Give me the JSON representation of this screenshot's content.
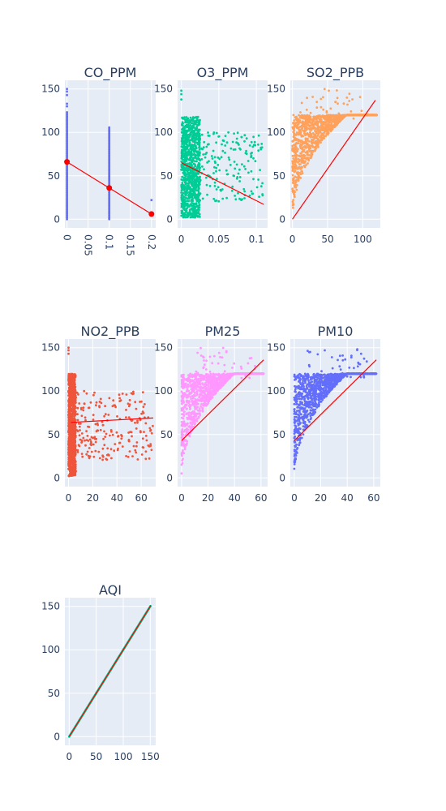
{
  "chart_data": [
    {
      "type": "scatter",
      "title": "CO_PPM",
      "xlim": [
        -0.005,
        0.21
      ],
      "ylim": [
        -10,
        160
      ],
      "x_ticks": [
        "0",
        "0.05",
        "0.1",
        "0.15",
        "0.2"
      ],
      "x_tick_values": [
        0,
        0.05,
        0.1,
        0.15,
        0.2
      ],
      "x_tick_angle": 90,
      "y_ticks": [
        "0",
        "50",
        "100",
        "150"
      ],
      "y_tick_values": [
        0,
        50,
        100,
        150
      ],
      "marker_color": "#636efa",
      "points": {
        "columns": [
          {
            "x": 0,
            "y_min": 0,
            "y_max": 124
          },
          {
            "x": 0.1,
            "y_min": 0,
            "y_max": 107
          }
        ],
        "extra": [
          [
            0,
            150
          ],
          [
            0,
            147
          ],
          [
            0,
            143
          ],
          [
            0,
            133
          ],
          [
            0,
            130
          ],
          [
            0.2,
            22
          ]
        ]
      },
      "trendline": {
        "color": "#ff0000",
        "x": [
          0,
          0.1,
          0.2
        ],
        "y": [
          66,
          36,
          6
        ],
        "markers": true
      }
    },
    {
      "type": "scatter",
      "title": "O3_PPM",
      "xlim": [
        -0.005,
        0.115
      ],
      "ylim": [
        -10,
        160
      ],
      "x_ticks": [
        "0",
        "0.05",
        "0.1"
      ],
      "x_tick_values": [
        0,
        0.05,
        0.1
      ],
      "y_ticks": [
        "0",
        "50",
        "100",
        "150"
      ],
      "y_tick_values": [
        0,
        50,
        100,
        150
      ],
      "marker_color": "#00cc96",
      "points": {
        "cloud": {
          "x_range": [
            0,
            0.11
          ],
          "y_range": [
            2,
            118
          ],
          "dense_x_max": 0.025
        },
        "extra": [
          [
            0,
            148
          ],
          [
            0,
            144
          ],
          [
            0,
            138
          ]
        ]
      },
      "trendline": {
        "color": "#ff0000",
        "x": [
          0,
          0.11
        ],
        "y": [
          65,
          17
        ]
      }
    },
    {
      "type": "scatter",
      "title": "SO2_PPB",
      "xlim": [
        -3,
        125
      ],
      "ylim": [
        -10,
        160
      ],
      "x_ticks": [
        "0",
        "50",
        "100"
      ],
      "x_tick_values": [
        0,
        50,
        100
      ],
      "y_ticks": [
        "0",
        "50",
        "100",
        "150"
      ],
      "y_tick_values": [
        0,
        50,
        100,
        150
      ],
      "marker_color": "#ffa15a",
      "points": {
        "wedge": {
          "x_max": 120,
          "upper_y": 120,
          "spread_y_max": 150
        }
      },
      "trendline": {
        "color": "#ff0000",
        "x": [
          0,
          118
        ],
        "y": [
          0,
          137
        ]
      }
    },
    {
      "type": "scatter",
      "title": "NO2_PPB",
      "xlim": [
        -3,
        72
      ],
      "ylim": [
        -10,
        160
      ],
      "x_ticks": [
        "0",
        "20",
        "40",
        "60"
      ],
      "x_tick_values": [
        0,
        20,
        40,
        60
      ],
      "y_ticks": [
        "0",
        "50",
        "100",
        "150"
      ],
      "y_tick_values": [
        0,
        50,
        100,
        150
      ],
      "marker_color": "#ef553b",
      "points": {
        "cloud": {
          "x_range": [
            0,
            70
          ],
          "y_range": [
            2,
            120
          ],
          "dense_x_max": 6
        },
        "extra": [
          [
            0,
            150
          ],
          [
            0,
            147
          ],
          [
            0,
            143
          ]
        ]
      },
      "trendline": {
        "color": "#ff0000",
        "x": [
          2,
          70
        ],
        "y": [
          64,
          69
        ]
      }
    },
    {
      "type": "scatter",
      "title": "PM25",
      "xlim": [
        -3,
        65
      ],
      "ylim": [
        -10,
        160
      ],
      "x_ticks": [
        "0",
        "20",
        "40",
        "60"
      ],
      "x_tick_values": [
        0,
        20,
        40,
        60
      ],
      "y_ticks": [
        "0",
        "50",
        "100",
        "150"
      ],
      "y_tick_values": [
        0,
        50,
        100,
        150
      ],
      "marker_color": "#ff97ff",
      "points": {
        "wedge": {
          "x_max": 62,
          "upper_y": 120,
          "spread_y_max": 150
        }
      },
      "trendline": {
        "color": "#ff0000",
        "x": [
          0,
          62
        ],
        "y": [
          43,
          136
        ]
      }
    },
    {
      "type": "scatter",
      "title": "PM10",
      "xlim": [
        -3,
        65
      ],
      "ylim": [
        -10,
        160
      ],
      "x_ticks": [
        "0",
        "20",
        "40",
        "60"
      ],
      "x_tick_values": [
        0,
        20,
        40,
        60
      ],
      "y_ticks": [
        "0",
        "50",
        "100",
        "150"
      ],
      "y_tick_values": [
        0,
        50,
        100,
        150
      ],
      "marker_color": "#636efa",
      "points": {
        "wedge": {
          "x_max": 62,
          "upper_y": 120,
          "spread_y_max": 150
        }
      },
      "trendline": {
        "color": "#ff0000",
        "x": [
          0,
          62
        ],
        "y": [
          43,
          136
        ]
      }
    },
    {
      "type": "scatter",
      "title": "AQI",
      "xlim": [
        -8,
        160
      ],
      "ylim": [
        -10,
        160
      ],
      "x_ticks": [
        "0",
        "50",
        "100",
        "150"
      ],
      "x_tick_values": [
        0,
        50,
        100,
        150
      ],
      "y_ticks": [
        "0",
        "50",
        "100",
        "150"
      ],
      "y_tick_values": [
        0,
        50,
        100,
        150
      ],
      "marker_color": "#00cc96",
      "points": {
        "diagonal": {
          "from": 0,
          "to": 151
        }
      },
      "trendline": {
        "color": "#ff0000",
        "x": [
          0,
          151
        ],
        "y": [
          0,
          151
        ]
      }
    }
  ]
}
